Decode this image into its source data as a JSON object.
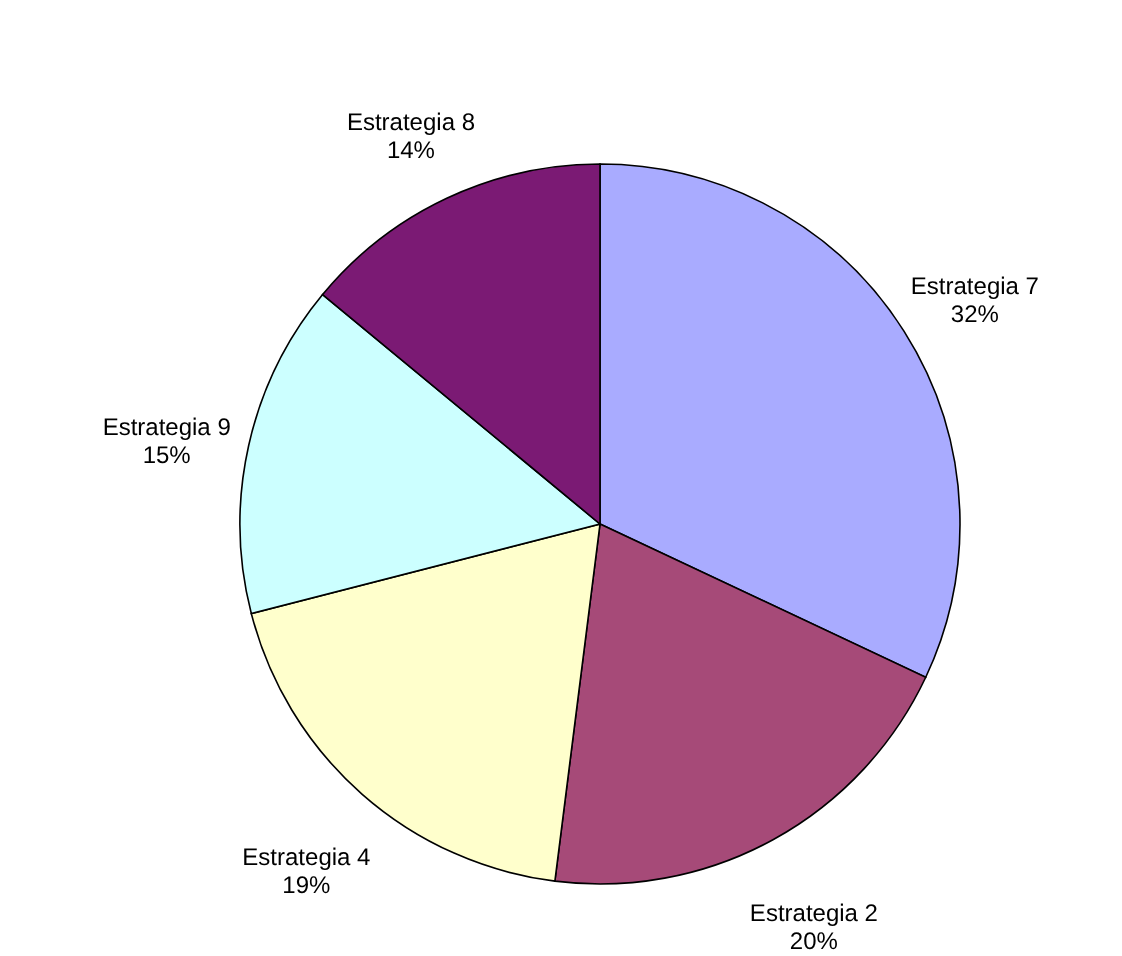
{
  "chart_data": {
    "type": "pie",
    "categories": [
      "Estrategia 7",
      "Estrategia 2",
      "Estrategia 4",
      "Estrategia 9",
      "Estrategia 8"
    ],
    "values": [
      32,
      20,
      19,
      15,
      14
    ],
    "colors": [
      "#a9abff",
      "#a64a78",
      "#ffffcc",
      "#ccffff",
      "#7b1a74"
    ],
    "value_labels": [
      "32%",
      "20%",
      "19%",
      "15%",
      "14%"
    ]
  }
}
